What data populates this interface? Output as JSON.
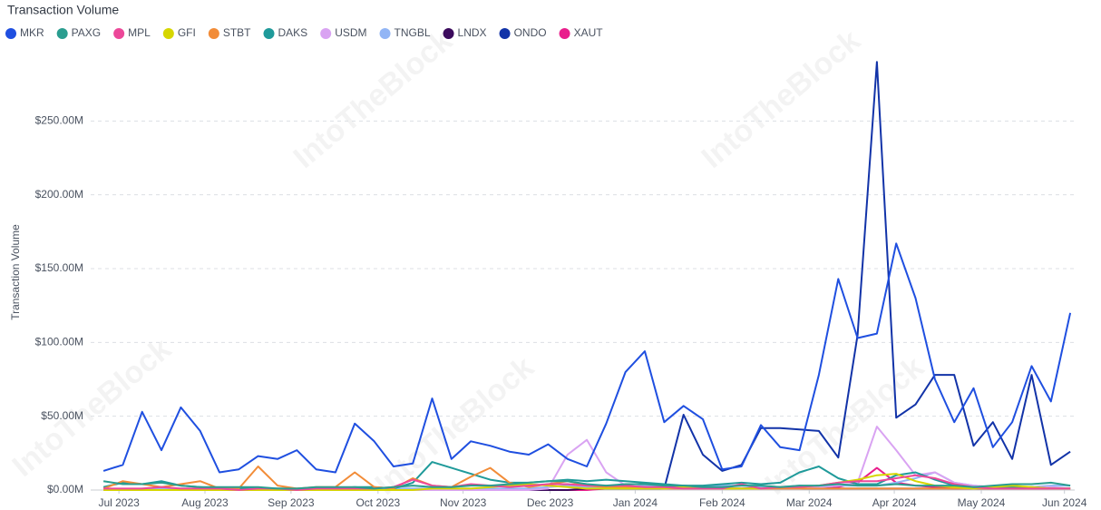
{
  "chart_data": {
    "type": "line",
    "title": "Transaction Volume",
    "y_label": "Transaction Volume",
    "watermark": "IntoTheBlock",
    "x": [
      0,
      1,
      2,
      3,
      4,
      5,
      6,
      7,
      8,
      9,
      10,
      11,
      12,
      13,
      14,
      15,
      16,
      17,
      18,
      19,
      20,
      21,
      22,
      23,
      24,
      25,
      26,
      27,
      28,
      29,
      30,
      31,
      32,
      33,
      34,
      35,
      36,
      37,
      38,
      39,
      40,
      41,
      42,
      43,
      44,
      45,
      46,
      47,
      48,
      49,
      50
    ],
    "xlim": [
      -0.66,
      50.23
    ],
    "xticks": [
      {
        "value": 0.8,
        "label": "Jul 2023"
      },
      {
        "value": 5.25,
        "label": "Aug 2023"
      },
      {
        "value": 9.7,
        "label": "Sep 2023"
      },
      {
        "value": 14.2,
        "label": "Oct 2023"
      },
      {
        "value": 18.6,
        "label": "Nov 2023"
      },
      {
        "value": 23.1,
        "label": "Dec 2023"
      },
      {
        "value": 27.5,
        "label": "Jan 2024"
      },
      {
        "value": 32.0,
        "label": "Feb 2024"
      },
      {
        "value": 36.5,
        "label": "Mar 2024"
      },
      {
        "value": 40.9,
        "label": "Apr 2024"
      },
      {
        "value": 45.4,
        "label": "May 2024"
      },
      {
        "value": 49.7,
        "label": "Jun 2024"
      }
    ],
    "ylim": [
      0,
      300
    ],
    "yticks": [
      {
        "value": 0,
        "label": "$0.00M"
      },
      {
        "value": 50,
        "label": "$50.00M"
      },
      {
        "value": 100,
        "label": "$100.00M"
      },
      {
        "value": 150,
        "label": "$150.00M"
      },
      {
        "value": 200,
        "label": "$200.00M"
      },
      {
        "value": 250,
        "label": "$250.00M"
      }
    ],
    "grid": true,
    "series": [
      {
        "name": "MKR",
        "color": "#1f4fe0",
        "values": [
          13,
          17,
          53,
          27,
          56,
          40,
          12,
          14,
          23,
          21,
          27,
          14,
          12,
          45,
          33,
          16,
          18,
          62,
          21,
          33,
          30,
          26,
          24,
          31,
          21,
          16,
          45,
          80,
          94,
          46,
          57,
          48,
          14,
          16,
          44,
          29,
          27,
          78,
          143,
          103,
          106,
          167,
          130,
          75,
          46,
          69,
          29,
          46,
          84,
          60,
          120
        ]
      },
      {
        "name": "PAXG",
        "color": "#2a9d8f",
        "values": [
          6,
          4,
          4,
          5,
          3,
          2,
          2,
          2,
          2,
          1,
          1,
          2,
          2,
          2,
          1,
          2,
          3,
          2,
          2,
          3,
          3,
          4,
          5,
          6,
          6,
          4,
          3,
          4,
          4,
          3,
          3,
          2,
          2,
          3,
          3,
          2,
          3,
          3,
          4,
          3,
          3,
          4,
          3,
          3,
          3,
          2,
          3,
          4,
          4,
          5,
          3
        ]
      },
      {
        "name": "MPL",
        "color": "#ec4899",
        "values": [
          1,
          1,
          1,
          2,
          1,
          1,
          1,
          0,
          1,
          1,
          0,
          1,
          1,
          1,
          1,
          2,
          7,
          3,
          2,
          4,
          3,
          2,
          3,
          4,
          4,
          3,
          3,
          3,
          2,
          2,
          1,
          1,
          1,
          4,
          1,
          2,
          2,
          3,
          5,
          6,
          6,
          8,
          10,
          8,
          4,
          2,
          1,
          1,
          1,
          1,
          1
        ]
      },
      {
        "name": "GFI",
        "color": "#d6d600",
        "values": [
          0,
          0,
          0,
          0,
          0,
          0,
          0,
          0,
          0,
          0,
          0,
          0,
          0,
          0,
          0,
          0,
          0,
          1,
          1,
          1,
          2,
          3,
          4,
          3,
          2,
          1,
          1,
          1,
          1,
          1,
          2,
          1,
          1,
          1,
          1,
          2,
          2,
          3,
          5,
          7,
          10,
          11,
          6,
          3,
          2,
          1,
          2,
          3,
          2,
          1,
          1
        ]
      },
      {
        "name": "STBT",
        "color": "#f28c38",
        "values": [
          1,
          6,
          4,
          2,
          4,
          6,
          1,
          1,
          16,
          3,
          1,
          2,
          2,
          12,
          2,
          1,
          8,
          3,
          2,
          9,
          15,
          5,
          2,
          4,
          6,
          3,
          2,
          2,
          2,
          1,
          1,
          1,
          1,
          1,
          1,
          1,
          1,
          1,
          1,
          1,
          1,
          1,
          1,
          1,
          1,
          1,
          1,
          1,
          1,
          1,
          1
        ]
      },
      {
        "name": "DAKS",
        "color": "#1f9a9a",
        "values": [
          2,
          5,
          4,
          6,
          3,
          2,
          1,
          1,
          1,
          1,
          1,
          1,
          1,
          2,
          2,
          1,
          5,
          19,
          15,
          11,
          7,
          5,
          5,
          6,
          7,
          6,
          7,
          6,
          5,
          4,
          3,
          3,
          4,
          5,
          4,
          5,
          12,
          16,
          8,
          4,
          4,
          10,
          12,
          7,
          3,
          2,
          2,
          2,
          2,
          1,
          1
        ]
      },
      {
        "name": "USDM",
        "color": "#d9a3f2",
        "values": [
          0,
          0,
          0,
          0,
          0,
          0,
          0,
          0,
          0,
          0,
          0,
          0,
          0,
          0,
          0,
          0,
          0,
          0,
          0,
          0,
          0,
          0,
          0,
          1,
          24,
          34,
          12,
          3,
          2,
          1,
          1,
          1,
          1,
          1,
          1,
          1,
          1,
          2,
          3,
          5,
          43,
          27,
          10,
          12,
          5,
          3,
          2,
          2,
          2,
          2,
          1
        ]
      },
      {
        "name": "TNGBL",
        "color": "#92b5f5",
        "values": [
          0,
          0,
          1,
          1,
          1,
          1,
          1,
          1,
          1,
          1,
          1,
          1,
          1,
          1,
          1,
          1,
          1,
          1,
          1,
          1,
          1,
          1,
          1,
          2,
          3,
          2,
          2,
          2,
          3,
          3,
          3,
          2,
          3,
          3,
          2,
          2,
          3,
          2,
          3,
          3,
          3,
          5,
          8,
          12,
          5,
          3,
          2,
          2,
          2,
          3,
          3
        ]
      },
      {
        "name": "LNDX",
        "color": "#3b0a5c",
        "values": [
          0,
          0,
          0,
          0,
          0,
          0,
          0,
          0,
          0,
          0,
          0,
          0,
          0,
          0,
          0,
          0,
          0,
          0,
          0,
          0,
          0,
          0,
          0,
          0,
          0,
          1,
          1,
          1,
          1,
          1,
          1,
          1,
          1,
          1,
          1,
          1,
          1,
          1,
          1,
          1,
          1,
          1,
          1,
          1,
          1,
          1,
          1,
          1,
          1,
          1,
          1
        ]
      },
      {
        "name": "ONDO",
        "color": "#1233a8",
        "values": [
          null,
          null,
          null,
          null,
          null,
          null,
          null,
          null,
          null,
          null,
          null,
          null,
          null,
          null,
          null,
          null,
          null,
          null,
          null,
          null,
          null,
          null,
          null,
          null,
          null,
          null,
          1,
          1,
          1,
          1,
          51,
          24,
          13,
          17,
          42,
          42,
          41,
          40,
          22,
          105,
          290,
          49,
          58,
          78,
          78,
          30,
          46,
          21,
          78,
          17,
          26
        ]
      },
      {
        "name": "XAUT",
        "color": "#e91e8c",
        "values": [
          0,
          0,
          0,
          0,
          0,
          0,
          0,
          0,
          0,
          0,
          0,
          0,
          0,
          0,
          0,
          0,
          0,
          0,
          0,
          0,
          0,
          0,
          0,
          0,
          0,
          0,
          1,
          1,
          1,
          2,
          2,
          1,
          1,
          1,
          2,
          1,
          1,
          2,
          2,
          5,
          15,
          5,
          3,
          2,
          1,
          1,
          1,
          1,
          1,
          1,
          1
        ]
      }
    ]
  }
}
